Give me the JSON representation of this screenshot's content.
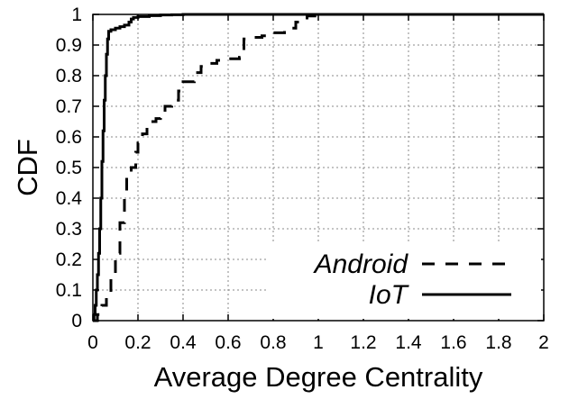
{
  "chart_data": {
    "type": "line",
    "title": "",
    "xlabel": "Average Degree Centrality",
    "ylabel": "CDF",
    "xlim": [
      0,
      2
    ],
    "ylim": [
      0,
      1
    ],
    "x_ticks": [
      "0",
      "0.2",
      "0.4",
      "0.6",
      "0.8",
      "1",
      "1.2",
      "1.4",
      "1.6",
      "1.8",
      "2"
    ],
    "y_ticks": [
      "0",
      "0.1",
      "0.2",
      "0.3",
      "0.4",
      "0.5",
      "0.6",
      "0.7",
      "0.8",
      "0.9",
      "1"
    ],
    "grid": true,
    "legend_position": "bottom-right",
    "series": [
      {
        "name": "Android",
        "style": "dashed",
        "color": "#000000",
        "x": [
          0,
          0.02,
          0.04,
          0.06,
          0.08,
          0.1,
          0.12,
          0.14,
          0.15,
          0.17,
          0.19,
          0.2,
          0.22,
          0.24,
          0.26,
          0.28,
          0.3,
          0.32,
          0.35,
          0.38,
          0.4,
          0.45,
          0.48,
          0.5,
          0.55,
          0.6,
          0.65,
          0.67,
          0.7,
          0.75,
          0.8,
          0.85,
          0.9,
          0.95,
          1.0,
          2.0
        ],
        "y": [
          0,
          0.02,
          0.05,
          0.08,
          0.14,
          0.22,
          0.32,
          0.42,
          0.47,
          0.5,
          0.55,
          0.58,
          0.61,
          0.63,
          0.65,
          0.66,
          0.68,
          0.7,
          0.72,
          0.75,
          0.78,
          0.81,
          0.83,
          0.84,
          0.85,
          0.855,
          0.86,
          0.92,
          0.925,
          0.93,
          0.94,
          0.955,
          0.975,
          0.995,
          1.0,
          1.0
        ]
      },
      {
        "name": "IoT",
        "style": "solid",
        "color": "#000000",
        "x": [
          0,
          0.005,
          0.01,
          0.015,
          0.02,
          0.025,
          0.03,
          0.035,
          0.04,
          0.045,
          0.05,
          0.055,
          0.06,
          0.065,
          0.07,
          0.08,
          0.1,
          0.12,
          0.14,
          0.16,
          0.17,
          0.18,
          0.2,
          0.25,
          0.3,
          0.35,
          0.4,
          0.5,
          0.6,
          1.0,
          2.0
        ],
        "y": [
          0,
          0.02,
          0.05,
          0.1,
          0.15,
          0.22,
          0.3,
          0.4,
          0.52,
          0.62,
          0.72,
          0.8,
          0.87,
          0.92,
          0.945,
          0.95,
          0.955,
          0.96,
          0.965,
          0.975,
          0.985,
          0.99,
          0.993,
          0.996,
          0.998,
          0.999,
          1.0,
          1.0,
          1.0,
          1.0,
          1.0
        ]
      }
    ]
  }
}
